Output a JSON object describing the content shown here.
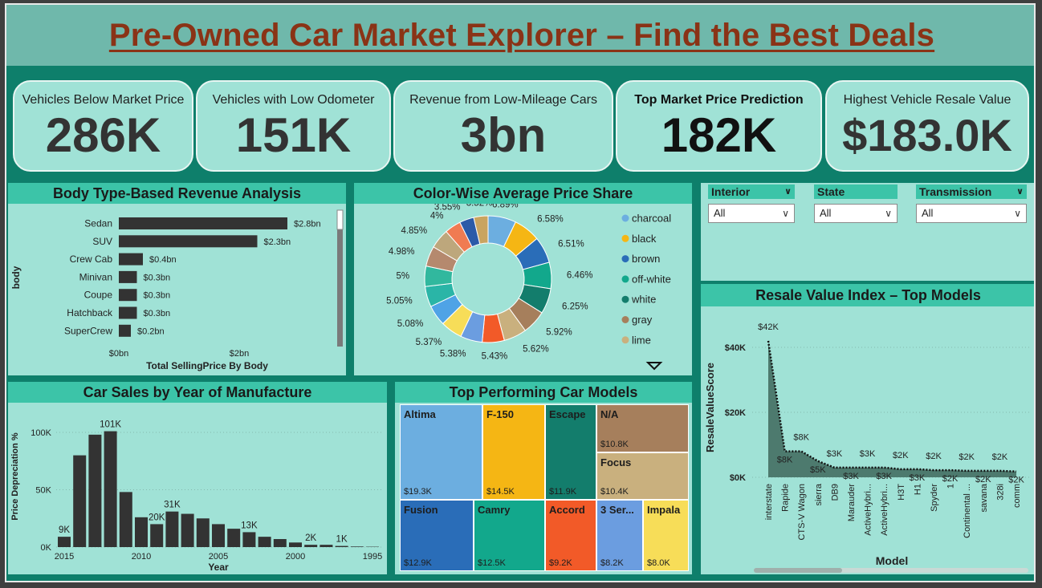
{
  "page": {
    "title": "Pre-Owned Car Market Explorer – Find the Best Deals"
  },
  "kpis": [
    {
      "label": "Vehicles Below Market Price",
      "value": "286K"
    },
    {
      "label": "Vehicles with Low Odometer",
      "value": "151K"
    },
    {
      "label": "Revenue from Low-Mileage Cars",
      "value": "3bn"
    },
    {
      "label": "Top Market Price Prediction",
      "value": "182K"
    },
    {
      "label": "Highest Vehicle Resale Value",
      "value": "$183.0K"
    }
  ],
  "filters": [
    {
      "label": "Interior",
      "value": "All"
    },
    {
      "label": "State",
      "value": "All"
    },
    {
      "label": "Transmission",
      "value": "All"
    }
  ],
  "chart_data": [
    {
      "id": "body_revenue",
      "type": "bar",
      "orientation": "horizontal",
      "title": "Body Type-Based Revenue Analysis",
      "xlabel": "Total SellingPrice By Body",
      "ylabel": "body",
      "x_ticks": [
        "$0bn",
        "$2bn"
      ],
      "xlim": [
        0,
        2.8
      ],
      "categories": [
        "Sedan",
        "SUV",
        "Crew Cab",
        "Minivan",
        "Coupe",
        "Hatchback",
        "SuperCrew"
      ],
      "values": [
        2.8,
        2.3,
        0.4,
        0.3,
        0.3,
        0.3,
        0.2
      ],
      "data_labels": [
        "$2.8bn",
        "$2.3bn",
        "$0.4bn",
        "$0.3bn",
        "$0.3bn",
        "$0.3bn",
        "$0.2bn"
      ],
      "color": "#333333"
    },
    {
      "id": "color_share",
      "type": "pie",
      "donut": true,
      "title": "Color-Wise Average Price Share",
      "legend": [
        "charcoal",
        "black",
        "brown",
        "off-white",
        "white",
        "gray",
        "lime"
      ],
      "slices": [
        {
          "value": 6.89,
          "label": "6.89%",
          "color": "#6caee0"
        },
        {
          "value": 6.58,
          "label": "6.58%",
          "color": "#f5b614"
        },
        {
          "value": 6.51,
          "label": "6.51%",
          "color": "#2a6db8"
        },
        {
          "value": 6.46,
          "label": "6.46%",
          "color": "#12a88c"
        },
        {
          "value": 6.25,
          "label": "6.25%",
          "color": "#137d6c"
        },
        {
          "value": 5.92,
          "label": "5.92%",
          "color": "#a67f5c"
        },
        {
          "value": 5.62,
          "label": "5.62%",
          "color": "#c9b07e"
        },
        {
          "value": 5.43,
          "label": "5.43%",
          "color": "#f25a28"
        },
        {
          "value": 5.38,
          "label": "5.38%",
          "color": "#6b9de0"
        },
        {
          "value": 5.37,
          "label": "5.37%",
          "color": "#f7dd58"
        },
        {
          "value": 5.08,
          "label": "5.08%",
          "color": "#4fa3e6"
        },
        {
          "value": 5.05,
          "label": "5.05%",
          "color": "#2ab5a7"
        },
        {
          "value": 5,
          "label": "5%",
          "color": "#31b89e"
        },
        {
          "value": 4.98,
          "label": "4.98%",
          "color": "#b5896e"
        },
        {
          "value": 4.85,
          "label": "4.85%",
          "color": "#bda77c"
        },
        {
          "value": 4,
          "label": "4%",
          "color": "#f07b52"
        },
        {
          "value": 3.55,
          "label": "3.55%",
          "color": "#2b5aa8"
        },
        {
          "value": 3.52,
          "label": "3.52%",
          "color": "#c9a460"
        }
      ],
      "legend_colors": [
        "#6caee0",
        "#f5b614",
        "#2a6db8",
        "#12a88c",
        "#137d6c",
        "#a67f5c",
        "#c9b07e"
      ]
    },
    {
      "id": "sales_by_year",
      "type": "bar",
      "title": "Car Sales by Year of Manufacture",
      "xlabel": "Year",
      "ylabel": "Price Depreciation %",
      "y_ticks": [
        "0K",
        "50K",
        "100K"
      ],
      "ylim": [
        0,
        110
      ],
      "x_ticks": [
        "2015",
        "2010",
        "2005",
        "2000",
        "1995"
      ],
      "x": [
        2015,
        2014,
        2013,
        2012,
        2011,
        2010,
        2009,
        2008,
        2007,
        2006,
        2005,
        2004,
        2003,
        2002,
        2001,
        2000,
        1999,
        1998,
        1997,
        1996,
        1995
      ],
      "values": [
        9,
        80,
        98,
        101,
        48,
        26,
        20,
        31,
        29,
        25,
        20,
        16,
        13,
        9,
        7,
        4,
        2,
        2,
        1,
        0.5,
        0.3
      ],
      "data_labels": [
        "9K",
        "",
        "",
        "101K",
        "",
        "",
        "20K",
        "31K",
        "",
        "",
        "",
        "",
        "13K",
        "",
        "",
        "",
        "2K",
        "",
        "1K",
        "",
        ""
      ],
      "color": "#333333"
    },
    {
      "id": "top_models",
      "type": "treemap",
      "title": "Top Performing Car Models",
      "items": [
        {
          "name": "Altima",
          "value": 19.3,
          "label": "$19.3K",
          "color": "#6caee0"
        },
        {
          "name": "F-150",
          "value": 14.5,
          "label": "$14.5K",
          "color": "#f5b614"
        },
        {
          "name": "Escape",
          "value": 11.9,
          "label": "$11.9K",
          "color": "#137d6c"
        },
        {
          "name": "N/A",
          "value": 10.8,
          "label": "$10.8K",
          "color": "#a67f5c"
        },
        {
          "name": "Focus",
          "value": 10.4,
          "label": "$10.4K",
          "color": "#c9b07e"
        },
        {
          "name": "Fusion",
          "value": 12.9,
          "label": "$12.9K",
          "color": "#2a6db8"
        },
        {
          "name": "Camry",
          "value": 12.5,
          "label": "$12.5K",
          "color": "#12a88c"
        },
        {
          "name": "Accord",
          "value": 9.2,
          "label": "$9.2K",
          "color": "#f25a28"
        },
        {
          "name": "3 Ser...",
          "value": 8.2,
          "label": "$8.2K",
          "color": "#6b9de0"
        },
        {
          "name": "Impala",
          "value": 8.0,
          "label": "$8.0K",
          "color": "#f7dd58"
        }
      ]
    },
    {
      "id": "resale_index",
      "type": "area",
      "title": "Resale Value Index – Top Models",
      "xlabel": "Model",
      "ylabel": "ResaleValueScore",
      "y_ticks": [
        "$0K",
        "$20K",
        "$40K"
      ],
      "ylim": [
        0,
        45
      ],
      "categories": [
        "interstate",
        "Rapide",
        "CTS-V Wagon",
        "sierra",
        "DB9",
        "Marauder",
        "ActiveHybri...",
        "ActiveHybri...",
        "H3T",
        "H1",
        "Spyder",
        "1",
        "Continental ...",
        "savana",
        "328i",
        "comm"
      ],
      "values": [
        42,
        8,
        8,
        5,
        3,
        3,
        3,
        3,
        2.5,
        2.5,
        2.2,
        2.2,
        2,
        2,
        2,
        1.8
      ],
      "data_labels": [
        "$42K",
        "$8K",
        "$8K",
        "$5K",
        "$3K",
        "$3K",
        "$3K",
        "$3K",
        "$2K",
        "$3K",
        "$2K",
        "$2K",
        "$2K",
        "$2K",
        "$2K",
        "$2K"
      ],
      "color": "#4d7a6e"
    }
  ]
}
